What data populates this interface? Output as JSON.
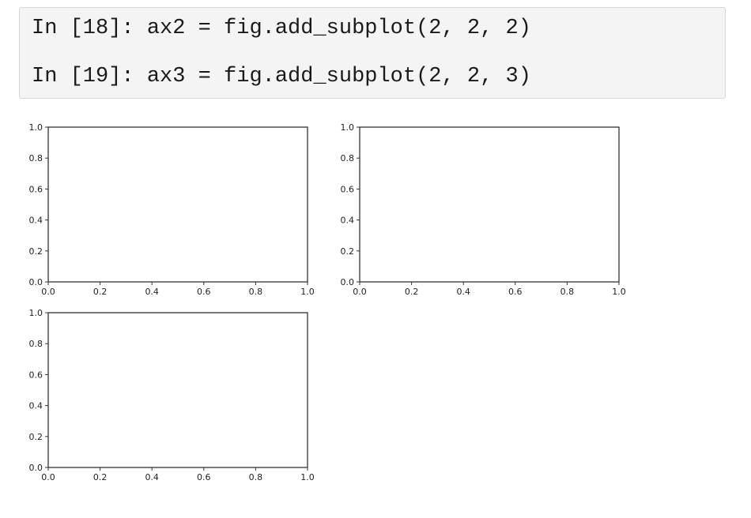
{
  "code_cell": {
    "lines": [
      "In [18]: ax2 = fig.add_subplot(2, 2, 2)",
      "In [19]: ax3 = fig.add_subplot(2, 2, 3)"
    ]
  },
  "chart_data": [
    {
      "type": "scatter",
      "subplot": "2,2,1",
      "title": "",
      "xlabel": "",
      "ylabel": "",
      "xlim": [
        0.0,
        1.0
      ],
      "ylim": [
        0.0,
        1.0
      ],
      "xticks": [
        0.0,
        0.2,
        0.4,
        0.6,
        0.8,
        1.0
      ],
      "yticks": [
        0.0,
        0.2,
        0.4,
        0.6,
        0.8,
        1.0
      ],
      "xtick_labels": [
        "0.0",
        "0.2",
        "0.4",
        "0.6",
        "0.8",
        "1.0"
      ],
      "ytick_labels": [
        "0.0",
        "0.2",
        "0.4",
        "0.6",
        "0.8",
        "1.0"
      ],
      "series": [],
      "grid": false
    },
    {
      "type": "scatter",
      "subplot": "2,2,2",
      "title": "",
      "xlabel": "",
      "ylabel": "",
      "xlim": [
        0.0,
        1.0
      ],
      "ylim": [
        0.0,
        1.0
      ],
      "xticks": [
        0.0,
        0.2,
        0.4,
        0.6,
        0.8,
        1.0
      ],
      "yticks": [
        0.0,
        0.2,
        0.4,
        0.6,
        0.8,
        1.0
      ],
      "xtick_labels": [
        "0.0",
        "0.2",
        "0.4",
        "0.6",
        "0.8",
        "1.0"
      ],
      "ytick_labels": [
        "0.0",
        "0.2",
        "0.4",
        "0.6",
        "0.8",
        "1.0"
      ],
      "series": [],
      "grid": false
    },
    {
      "type": "scatter",
      "subplot": "2,2,3",
      "title": "",
      "xlabel": "",
      "ylabel": "",
      "xlim": [
        0.0,
        1.0
      ],
      "ylim": [
        0.0,
        1.0
      ],
      "xticks": [
        0.0,
        0.2,
        0.4,
        0.6,
        0.8,
        1.0
      ],
      "yticks": [
        0.0,
        0.2,
        0.4,
        0.6,
        0.8,
        1.0
      ],
      "xtick_labels": [
        "0.0",
        "0.2",
        "0.4",
        "0.6",
        "0.8",
        "1.0"
      ],
      "ytick_labels": [
        "0.0",
        "0.2",
        "0.4",
        "0.6",
        "0.8",
        "1.0"
      ],
      "series": [],
      "grid": false
    }
  ]
}
